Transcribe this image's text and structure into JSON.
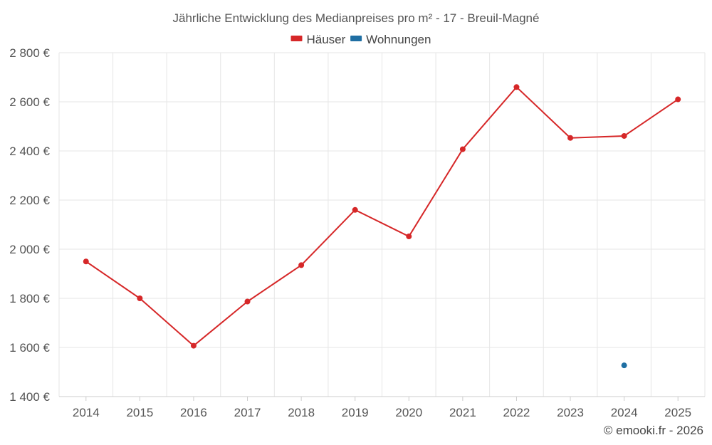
{
  "title": "Jährliche Entwicklung des Medianpreises pro m² - 17 - Breuil-Magné",
  "credit": "© emooki.fr - 2026",
  "legend": [
    {
      "label": "Häuser",
      "color": "#d62728"
    },
    {
      "label": "Wohnungen",
      "color": "#1f6fa3"
    }
  ],
  "chart_data": {
    "type": "line",
    "title": "Jährliche Entwicklung des Medianpreises pro m² - 17 - Breuil-Magné",
    "xlabel": "",
    "ylabel": "",
    "categories": [
      "2014",
      "2015",
      "2016",
      "2017",
      "2018",
      "2019",
      "2020",
      "2021",
      "2022",
      "2023",
      "2024",
      "2025"
    ],
    "ylim": [
      1400,
      2800
    ],
    "yticks": [
      1400,
      1600,
      1800,
      2000,
      2200,
      2400,
      2600,
      2800
    ],
    "ytick_labels": [
      "1 400 €",
      "1 600 €",
      "1 800 €",
      "2 000 €",
      "2 200 €",
      "2 400 €",
      "2 600 €",
      "2 800 €"
    ],
    "grid": true,
    "legend_position": "top-center",
    "series": [
      {
        "name": "Häuser",
        "color": "#d62728",
        "values": [
          1950,
          1800,
          1607,
          1787,
          1935,
          2160,
          2052,
          2407,
          2660,
          2453,
          2461,
          2610
        ]
      },
      {
        "name": "Wohnungen",
        "color": "#1f6fa3",
        "values": [
          null,
          null,
          null,
          null,
          null,
          null,
          null,
          null,
          null,
          null,
          1527,
          null
        ]
      }
    ]
  }
}
